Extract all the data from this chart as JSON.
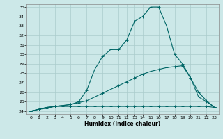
{
  "xlabel": "Humidex (Indice chaleur)",
  "bg_color": "#cce8e8",
  "grid_color": "#aacccc",
  "line_color": "#006666",
  "xlim": [
    -0.5,
    23.5
  ],
  "ylim": [
    23.7,
    35.3
  ],
  "xticks": [
    0,
    1,
    2,
    3,
    4,
    5,
    6,
    7,
    8,
    9,
    10,
    11,
    12,
    13,
    14,
    15,
    16,
    17,
    18,
    19,
    20,
    21,
    22,
    23
  ],
  "yticks": [
    24,
    25,
    26,
    27,
    28,
    29,
    30,
    31,
    32,
    33,
    34,
    35
  ],
  "line1_y": [
    24.0,
    24.2,
    24.3,
    24.5,
    24.5,
    24.5,
    24.5,
    24.5,
    24.5,
    24.5,
    24.5,
    24.5,
    24.5,
    24.5,
    24.5,
    24.5,
    24.5,
    24.5,
    24.5,
    24.5,
    24.5,
    24.5,
    24.5,
    24.4
  ],
  "line2_y": [
    24.0,
    24.2,
    24.4,
    24.5,
    24.6,
    24.7,
    24.9,
    25.1,
    25.5,
    25.9,
    26.3,
    26.7,
    27.1,
    27.5,
    27.9,
    28.2,
    28.4,
    28.6,
    28.7,
    28.8,
    27.5,
    26.0,
    25.1,
    24.4
  ],
  "line3_y": [
    24.0,
    24.2,
    24.4,
    24.5,
    24.6,
    24.7,
    25.0,
    26.2,
    28.4,
    29.8,
    30.5,
    30.5,
    31.5,
    33.5,
    34.0,
    35.0,
    35.0,
    33.0,
    30.0,
    29.0,
    27.5,
    25.5,
    25.0,
    24.4
  ]
}
